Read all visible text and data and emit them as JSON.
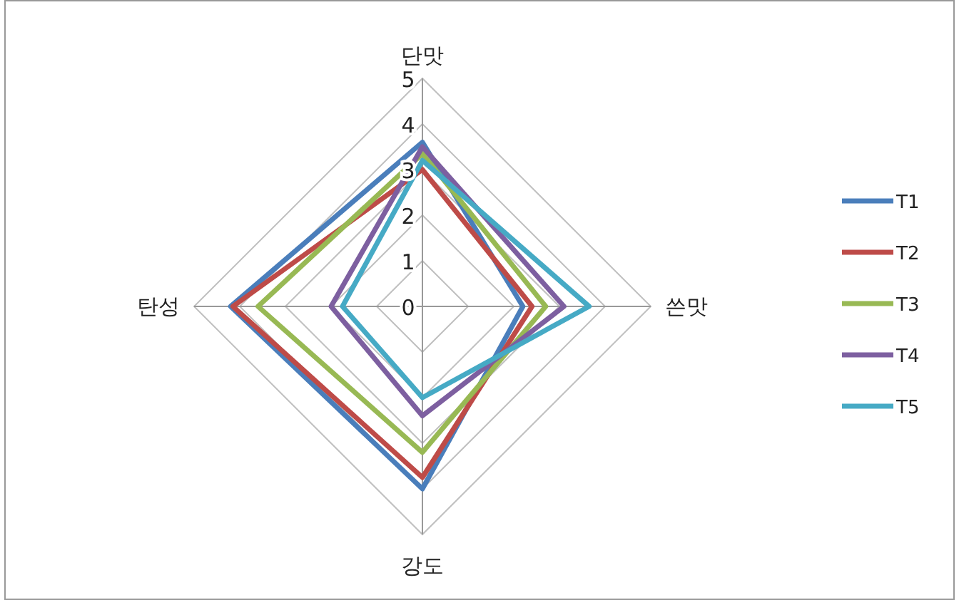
{
  "chart_data": {
    "type": "radar",
    "categories": [
      "단맛",
      "쓴맛",
      "강도",
      "탄성"
    ],
    "ylim": [
      0,
      5
    ],
    "yticks": [
      0,
      1,
      2,
      3,
      4,
      5
    ],
    "grid": true,
    "legend": "right",
    "series": [
      {
        "name": "T1",
        "color": "#4a7ebb",
        "values": [
          3.6,
          2.2,
          4.0,
          4.2
        ]
      },
      {
        "name": "T2",
        "color": "#be4b48",
        "values": [
          3.0,
          2.4,
          3.75,
          4.15
        ]
      },
      {
        "name": "T3",
        "color": "#98b954",
        "values": [
          3.35,
          2.7,
          3.2,
          3.6
        ]
      },
      {
        "name": "T4",
        "color": "#7d5fa0",
        "values": [
          3.5,
          3.1,
          2.4,
          2.0
        ]
      },
      {
        "name": "T5",
        "color": "#46aac5",
        "values": [
          3.2,
          3.65,
          2.0,
          1.75
        ]
      }
    ]
  }
}
